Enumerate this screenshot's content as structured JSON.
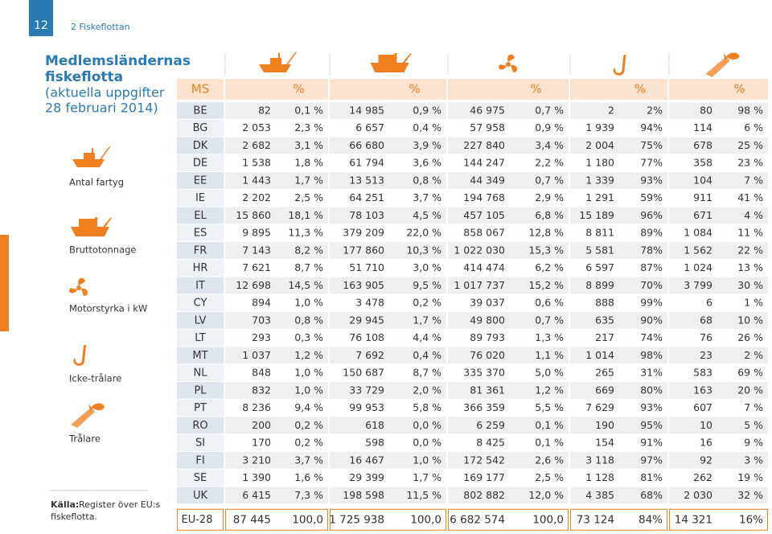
{
  "header": {
    "page_number": "12",
    "section": "2 Fiskeflottan"
  },
  "sidebar": {
    "title_line1": "Medlemsländernas",
    "title_line2": "fiskeflotta",
    "subtitle_line1": "(aktuella uppgifter",
    "subtitle_line2": "28 februari 2014)",
    "legend": [
      "Antal fartyg",
      "Bruttotonnage",
      "Motorstyrka i kW",
      "Icke-trålare",
      "Trålare"
    ],
    "source_label": "Källa:",
    "source_line1": "Register över EU:s",
    "source_line2": "fiskeflotta."
  },
  "table": {
    "header": {
      "ms": "MS",
      "percent": "%"
    },
    "rows": [
      [
        "BE",
        "82",
        "0,1 %",
        "14 985",
        "0,9 %",
        "46 975",
        "0,7 %",
        "2",
        "2%",
        "80",
        "98 %"
      ],
      [
        "BG",
        "2 053",
        "2,3 %",
        "6 657",
        "0,4 %",
        "57 958",
        "0,9 %",
        "1 939",
        "94%",
        "114",
        "6 %"
      ],
      [
        "DK",
        "2 682",
        "3,1 %",
        "66 680",
        "3,9 %",
        "227 840",
        "3,4 %",
        "2 004",
        "75%",
        "678",
        "25 %"
      ],
      [
        "DE",
        "1 538",
        "1,8 %",
        "61 794",
        "3,6 %",
        "144 247",
        "2,2 %",
        "1 180",
        "77%",
        "358",
        "23 %"
      ],
      [
        "EE",
        "1 443",
        "1,7 %",
        "13 513",
        "0,8 %",
        "44 349",
        "0,7 %",
        "1 339",
        "93%",
        "104",
        "7 %"
      ],
      [
        "IE",
        "2 202",
        "2,5 %",
        "64 251",
        "3,7 %",
        "194 768",
        "2,9 %",
        "1 291",
        "59%",
        "911",
        "41 %"
      ],
      [
        "EL",
        "15 860",
        "18,1 %",
        "78 103",
        "4,5 %",
        "457 105",
        "6,8 %",
        "15 189",
        "96%",
        "671",
        "4 %"
      ],
      [
        "ES",
        "9 895",
        "11,3 %",
        "379 209",
        "22,0 %",
        "858 067",
        "12,8 %",
        "8 811",
        "89%",
        "1 084",
        "11 %"
      ],
      [
        "FR",
        "7 143",
        "8,2 %",
        "177 860",
        "10,3 %",
        "1 022 030",
        "15,3 %",
        "5 581",
        "78%",
        "1 562",
        "22 %"
      ],
      [
        "HR",
        "7 621",
        "8,7 %",
        "51 710",
        "3,0 %",
        "414 474",
        "6,2 %",
        "6 597",
        "87%",
        "1 024",
        "13 %"
      ],
      [
        "IT",
        "12 698",
        "14,5 %",
        "163 905",
        "9,5 %",
        "1 017 737",
        "15,2 %",
        "8 899",
        "70%",
        "3 799",
        "30 %"
      ],
      [
        "CY",
        "894",
        "1,0 %",
        "3 478",
        "0,2 %",
        "39 037",
        "0,6 %",
        "888",
        "99%",
        "6",
        "1 %"
      ],
      [
        "LV",
        "703",
        "0,8 %",
        "29 945",
        "1,7 %",
        "49 800",
        "0,7 %",
        "635",
        "90%",
        "68",
        "10 %"
      ],
      [
        "LT",
        "293",
        "0,3 %",
        "76 108",
        "4,4 %",
        "89 793",
        "1,3 %",
        "217",
        "74%",
        "76",
        "26 %"
      ],
      [
        "MT",
        "1 037",
        "1,2 %",
        "7 692",
        "0,4 %",
        "76 020",
        "1,1 %",
        "1 014",
        "98%",
        "23",
        "2 %"
      ],
      [
        "NL",
        "848",
        "1,0 %",
        "150 687",
        "8,7 %",
        "335 370",
        "5,0 %",
        "265",
        "31%",
        "583",
        "69 %"
      ],
      [
        "PL",
        "832",
        "1,0 %",
        "33 729",
        "2,0 %",
        "81 361",
        "1,2 %",
        "669",
        "80%",
        "163",
        "20 %"
      ],
      [
        "PT",
        "8 236",
        "9,4 %",
        "99 953",
        "5,8 %",
        "366 359",
        "5,5 %",
        "7 629",
        "93%",
        "607",
        "7 %"
      ],
      [
        "RO",
        "200",
        "0,2 %",
        "618",
        "0,0 %",
        "6 259",
        "0,1 %",
        "190",
        "95%",
        "10",
        "5 %"
      ],
      [
        "SI",
        "170",
        "0,2 %",
        "598",
        "0,0 %",
        "8 425",
        "0,1 %",
        "154",
        "91%",
        "16",
        "9 %"
      ],
      [
        "FI",
        "3 210",
        "3,7 %",
        "16 467",
        "1,0 %",
        "172 542",
        "2,6 %",
        "3 118",
        "97%",
        "92",
        "3 %"
      ],
      [
        "SE",
        "1 390",
        "1,6 %",
        "29 399",
        "1,7 %",
        "169 177",
        "2,5 %",
        "1 128",
        "81%",
        "262",
        "19 %"
      ],
      [
        "UK",
        "6 415",
        "7,3 %",
        "198 598",
        "11,5 %",
        "802 882",
        "12,0 %",
        "4 385",
        "68%",
        "2 030",
        "32 %"
      ]
    ],
    "total": [
      "EU-28",
      "87 445",
      "100,0",
      "1 725 938",
      "100,0",
      "6 682 574",
      "100,0",
      "73 124",
      "84%",
      "14 321",
      "16%"
    ]
  }
}
